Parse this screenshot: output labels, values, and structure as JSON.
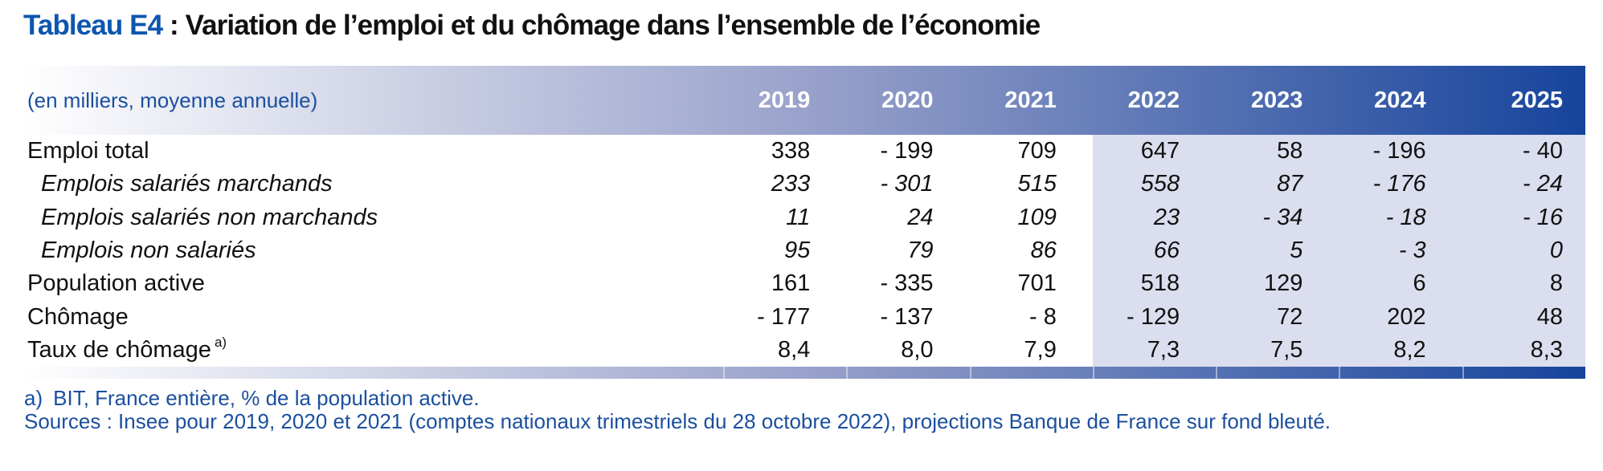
{
  "colors": {
    "accent_blue": "#0d56af",
    "text_black": "#111111",
    "note_blue": "#1b4f9e",
    "header_gradient_start": "#ffffff",
    "header_gradient_mid": "#99a2cb",
    "header_gradient_end": "#16449c",
    "projection_background": "#dbdeee"
  },
  "title": {
    "accent": "Tableau E4",
    "rest": " : Variation de l’emploi et du chômage dans l’ensemble de l’économie"
  },
  "table": {
    "unit_label": "(en milliers, moyenne annuelle)",
    "years": [
      "2019",
      "2020",
      "2021",
      "2022",
      "2023",
      "2024",
      "2025"
    ],
    "projection_start_index": 3,
    "rows": [
      {
        "label": "Emploi total",
        "italic": false,
        "values": [
          "338",
          "- 199",
          "709",
          "647",
          "58",
          "- 196",
          "- 40"
        ]
      },
      {
        "label": "Emplois salariés marchands",
        "italic": true,
        "values": [
          "233",
          "- 301",
          "515",
          "558",
          "87",
          "- 176",
          "- 24"
        ]
      },
      {
        "label": "Emplois salariés non marchands",
        "italic": true,
        "values": [
          "11",
          "24",
          "109",
          "23",
          "- 34",
          "- 18",
          "- 16"
        ]
      },
      {
        "label": "Emplois non salariés",
        "italic": true,
        "values": [
          "95",
          "79",
          "86",
          "66",
          "5",
          "- 3",
          "0"
        ]
      },
      {
        "label": "Population active",
        "italic": false,
        "values": [
          "161",
          "- 335",
          "701",
          "518",
          "129",
          "6",
          "8"
        ]
      },
      {
        "label": "Chômage",
        "italic": false,
        "values": [
          "- 177",
          "- 137",
          "- 8",
          "- 129",
          "72",
          "202",
          "48"
        ]
      },
      {
        "label": "Taux de chômage",
        "sup": "a)",
        "italic": false,
        "values": [
          "8,4",
          "8,0",
          "7,9",
          "7,3",
          "7,5",
          "8,2",
          "8,3"
        ]
      }
    ]
  },
  "footnotes": {
    "note_a": {
      "marker": "a)",
      "text": "BIT, France entière, % de la population active."
    },
    "sources": "Sources : Insee pour 2019, 2020 et 2021 (comptes nationaux trimestriels du 28 octobre 2022), projections Banque de France sur fond bleuté."
  }
}
